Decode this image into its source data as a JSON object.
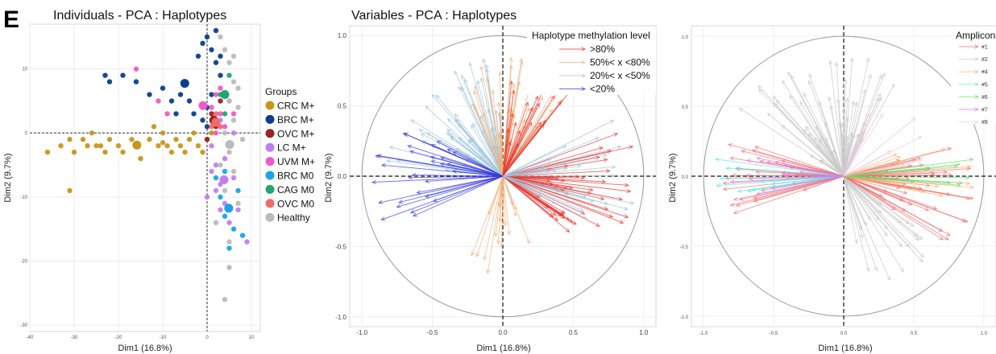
{
  "panel_letter": "E",
  "chart_data": [
    {
      "type": "scatter",
      "title": "Individuals - PCA : Haplotypes",
      "xlabel": "Dim1 (16.8%)",
      "ylabel": "Dim2 (9.7%)",
      "xlim": [
        -40,
        12
      ],
      "ylim": [
        -31,
        17
      ],
      "x_ticks": [
        "-40",
        "-30",
        "-20",
        "-10",
        "0",
        "10"
      ],
      "y_ticks": [
        "10",
        "0",
        "-10",
        "-20",
        "-30"
      ],
      "grid": true,
      "legend_title": "Groups",
      "legend_position": "right",
      "groups": [
        {
          "name": "CRC M+",
          "color": "#c8961e"
        },
        {
          "name": "BRC M+",
          "color": "#0a3f8c"
        },
        {
          "name": "OVC M+",
          "color": "#9b2222"
        },
        {
          "name": "LC M+",
          "color": "#c27ef0"
        },
        {
          "name": "UVM M+",
          "color": "#f05ac8"
        },
        {
          "name": "BRC M0",
          "color": "#1aa3e8"
        },
        {
          "name": "CAG M0",
          "color": "#21a66f"
        },
        {
          "name": "OVC M0",
          "color": "#f06a6a"
        },
        {
          "name": "Healthy",
          "color": "#bbbbbb"
        }
      ],
      "points": [
        {
          "g": 0,
          "x": -36,
          "y": -3
        },
        {
          "g": 0,
          "x": -33,
          "y": -2
        },
        {
          "g": 0,
          "x": -31,
          "y": -1
        },
        {
          "g": 0,
          "x": -30,
          "y": -3
        },
        {
          "g": 0,
          "x": -31,
          "y": -9
        },
        {
          "g": 0,
          "x": -28,
          "y": -1
        },
        {
          "g": 0,
          "x": -27,
          "y": -2
        },
        {
          "g": 0,
          "x": -26,
          "y": 0
        },
        {
          "g": 0,
          "x": -25,
          "y": -2
        },
        {
          "g": 0,
          "x": -24,
          "y": -2
        },
        {
          "g": 0,
          "x": -22,
          "y": -1
        },
        {
          "g": 0,
          "x": -20,
          "y": -2
        },
        {
          "g": 0,
          "x": -19,
          "y": -3
        },
        {
          "g": 0,
          "x": -17,
          "y": -1
        },
        {
          "g": 0,
          "x": -15,
          "y": -4
        },
        {
          "g": 0,
          "x": -13,
          "y": -1
        },
        {
          "g": 0,
          "x": -11,
          "y": -2
        },
        {
          "g": 0,
          "x": -10,
          "y": 0
        },
        {
          "g": 0,
          "x": -9,
          "y": -2
        },
        {
          "g": 0,
          "x": -8,
          "y": -3
        },
        {
          "g": 0,
          "x": -7,
          "y": -1
        },
        {
          "g": 0,
          "x": -6,
          "y": -2
        },
        {
          "g": 0,
          "x": -5,
          "y": -3
        },
        {
          "g": 0,
          "x": -4,
          "y": -1
        },
        {
          "g": 0,
          "x": -3,
          "y": 0
        },
        {
          "g": 0,
          "x": -2,
          "y": -2
        },
        {
          "g": 0,
          "x": -1,
          "y": -3
        },
        {
          "g": 0,
          "x": 0,
          "y": -1
        },
        {
          "g": 0,
          "x": 1,
          "y": 0
        },
        {
          "g": 0,
          "x": -10,
          "y": -1.5
        },
        {
          "g": 0,
          "x": -12,
          "y": 1
        },
        {
          "g": 0,
          "x": -23,
          "y": -3
        },
        {
          "g": 1,
          "x": -23,
          "y": 9
        },
        {
          "g": 1,
          "x": -22,
          "y": 8
        },
        {
          "g": 1,
          "x": -19,
          "y": 9
        },
        {
          "g": 1,
          "x": -16,
          "y": 8
        },
        {
          "g": 1,
          "x": -13,
          "y": 6
        },
        {
          "g": 1,
          "x": -10,
          "y": 7
        },
        {
          "g": 1,
          "x": -8,
          "y": 5
        },
        {
          "g": 1,
          "x": -6,
          "y": 6
        },
        {
          "g": 1,
          "x": -4,
          "y": 5
        },
        {
          "g": 1,
          "x": -3,
          "y": 3
        },
        {
          "g": 1,
          "x": -2,
          "y": 12
        },
        {
          "g": 1,
          "x": -1,
          "y": 14
        },
        {
          "g": 1,
          "x": 0,
          "y": 15
        },
        {
          "g": 1,
          "x": 1,
          "y": 13
        },
        {
          "g": 1,
          "x": 2,
          "y": 11
        },
        {
          "g": 1,
          "x": 3,
          "y": 9
        },
        {
          "g": 1,
          "x": 1,
          "y": 6
        },
        {
          "g": 1,
          "x": 0,
          "y": 4
        },
        {
          "g": 1,
          "x": 2,
          "y": 2
        },
        {
          "g": 1,
          "x": -1,
          "y": 2
        },
        {
          "g": 1,
          "x": 0,
          "y": 1
        },
        {
          "g": 1,
          "x": 2,
          "y": 16
        },
        {
          "g": 1,
          "x": 3,
          "y": 12
        },
        {
          "g": 1,
          "x": -7,
          "y": 3
        },
        {
          "g": 2,
          "x": 1,
          "y": 3
        },
        {
          "g": 2,
          "x": 2,
          "y": 1
        },
        {
          "g": 2,
          "x": 0,
          "y": -1
        },
        {
          "g": 2,
          "x": 3,
          "y": 5
        },
        {
          "g": 3,
          "x": 1,
          "y": -2
        },
        {
          "g": 3,
          "x": 2,
          "y": -5
        },
        {
          "g": 3,
          "x": 3,
          "y": -8
        },
        {
          "g": 3,
          "x": 4,
          "y": -11
        },
        {
          "g": 3,
          "x": 5,
          "y": -14
        },
        {
          "g": 3,
          "x": 3,
          "y": -12
        },
        {
          "g": 3,
          "x": 2,
          "y": -9
        },
        {
          "g": 3,
          "x": 4,
          "y": -4
        },
        {
          "g": 3,
          "x": 6,
          "y": -7
        },
        {
          "g": 3,
          "x": 1,
          "y": -6
        },
        {
          "g": 3,
          "x": 0,
          "y": -10
        },
        {
          "g": 3,
          "x": 5,
          "y": -2
        },
        {
          "g": 3,
          "x": 7,
          "y": -12
        },
        {
          "g": 3,
          "x": 9,
          "y": -17
        },
        {
          "g": 3,
          "x": 3,
          "y": 2
        },
        {
          "g": 3,
          "x": 6,
          "y": 0
        },
        {
          "g": 4,
          "x": -16,
          "y": 10
        },
        {
          "g": 4,
          "x": -11,
          "y": 5
        },
        {
          "g": 4,
          "x": -9,
          "y": 3
        },
        {
          "g": 4,
          "x": 1,
          "y": 4
        },
        {
          "g": 4,
          "x": 2,
          "y": 6
        },
        {
          "g": 4,
          "x": 3,
          "y": 3
        },
        {
          "g": 4,
          "x": 4,
          "y": 1
        },
        {
          "g": 4,
          "x": 5,
          "y": 5
        },
        {
          "g": 4,
          "x": 6,
          "y": 3
        },
        {
          "g": 4,
          "x": 3,
          "y": 7
        },
        {
          "g": 4,
          "x": 2,
          "y": 0
        },
        {
          "g": 5,
          "x": 2,
          "y": -7
        },
        {
          "g": 5,
          "x": 3,
          "y": -10
        },
        {
          "g": 5,
          "x": 4,
          "y": -13
        },
        {
          "g": 5,
          "x": 6,
          "y": -15
        },
        {
          "g": 5,
          "x": 8,
          "y": -16
        },
        {
          "g": 5,
          "x": 5,
          "y": -18
        },
        {
          "g": 5,
          "x": 4,
          "y": -6
        },
        {
          "g": 5,
          "x": 7,
          "y": -9
        },
        {
          "g": 6,
          "x": 5,
          "y": 9
        },
        {
          "g": 6,
          "x": 3,
          "y": 6
        },
        {
          "g": 6,
          "x": 4,
          "y": 3
        },
        {
          "g": 7,
          "x": 1,
          "y": 1
        },
        {
          "g": 7,
          "x": 2,
          "y": 3
        },
        {
          "g": 7,
          "x": 3,
          "y": 1
        },
        {
          "g": 8,
          "x": 3,
          "y": 15
        },
        {
          "g": 8,
          "x": 4,
          "y": 13
        },
        {
          "g": 8,
          "x": 5,
          "y": 11
        },
        {
          "g": 8,
          "x": 6,
          "y": 8
        },
        {
          "g": 8,
          "x": 5,
          "y": 5
        },
        {
          "g": 8,
          "x": 6,
          "y": 2
        },
        {
          "g": 8,
          "x": 4,
          "y": 0
        },
        {
          "g": 8,
          "x": 5,
          "y": -3
        },
        {
          "g": 8,
          "x": 6,
          "y": -6
        },
        {
          "g": 8,
          "x": 4,
          "y": -9
        },
        {
          "g": 8,
          "x": 7,
          "y": -11
        },
        {
          "g": 8,
          "x": 5,
          "y": -17
        },
        {
          "g": 8,
          "x": 5,
          "y": -21
        },
        {
          "g": 8,
          "x": 4,
          "y": -26
        },
        {
          "g": 8,
          "x": 7,
          "y": 4
        },
        {
          "g": 8,
          "x": 8,
          "y": -1
        },
        {
          "g": 8,
          "x": 3,
          "y": -5
        },
        {
          "g": 8,
          "x": 2,
          "y": -14
        },
        {
          "g": 8,
          "x": 6,
          "y": 12
        },
        {
          "g": 8,
          "x": 7,
          "y": 7
        }
      ]
    },
    {
      "type": "scatter",
      "title": "Variables - PCA : Haplotypes",
      "xlabel": "Dim1 (16.8%)",
      "ylabel": "Dim2 (9.7%)",
      "xlim": [
        -1.0,
        1.0
      ],
      "ylim": [
        -1.0,
        1.0
      ],
      "x_ticks": [
        "-1.0",
        "-0.5",
        "0.0",
        "0.5",
        "1.0"
      ],
      "y_ticks": [
        "1.0",
        "0.5",
        "0.0",
        "-0.5",
        "-1.0"
      ],
      "grid": true,
      "legend_title": "Haplotype methylation level",
      "legend_position": "top-right",
      "legend": [
        {
          "name": ">80%",
          "color": "#e8332f"
        },
        {
          "name": "50%< x <80%",
          "color": "#f0b27a"
        },
        {
          "name": "20%< x <50%",
          "color": "#9ec5dc"
        },
        {
          "name": "<20%",
          "color": "#3a3adb"
        }
      ]
    },
    {
      "type": "scatter",
      "xlim": [
        -1.0,
        1.0
      ],
      "ylim": [
        -1.0,
        1.0
      ],
      "x_ticks": [
        "-1.0",
        "-0.5",
        "0.0",
        "0.5",
        "1.0"
      ],
      "y_ticks": [
        "1.0",
        "0.5",
        "0.0",
        "-0.5",
        "-1.0"
      ],
      "xlabel": "Dim1 (16.8%)",
      "ylabel": "Dim2 (9.7%)",
      "grid": true,
      "legend_title": "Amplicon",
      "legend_position": "top-right",
      "legend": [
        {
          "name": "#1",
          "color": "#f07070"
        },
        {
          "name": "#2",
          "color": "#c8c8c8"
        },
        {
          "name": "#4",
          "color": "#f5b06a"
        },
        {
          "name": "#5",
          "color": "#5ee6e6"
        },
        {
          "name": "#6",
          "color": "#6ad96a"
        },
        {
          "name": "#7",
          "color": "#d67ee6"
        },
        {
          "name": "#8",
          "color": "#f3c6dd"
        }
      ]
    }
  ]
}
